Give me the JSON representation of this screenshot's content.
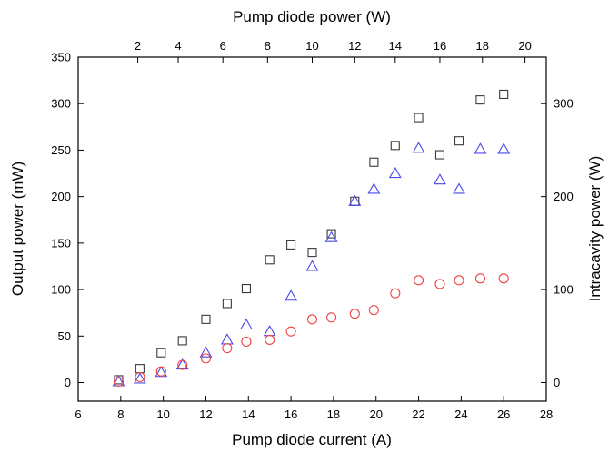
{
  "chart_data": {
    "type": "scatter",
    "xlabel": "Pump diode current (A)",
    "x2label": "Pump diode power (W)",
    "ylabel": "Output power (mW)",
    "y2label": "Intracavity power (W)",
    "xlim": [
      6,
      28
    ],
    "ylim": [
      -20,
      350
    ],
    "x_ticks": [
      6,
      8,
      10,
      12,
      14,
      16,
      18,
      20,
      22,
      24,
      26,
      28
    ],
    "y_ticks": [
      0,
      50,
      100,
      150,
      200,
      250,
      300,
      350
    ],
    "x2_ticks": [
      2,
      4,
      6,
      8,
      10,
      12,
      14,
      16,
      18,
      20
    ],
    "x2_tick_current": [
      8.8,
      10.7,
      12.8,
      14.9,
      17.0,
      19.0,
      20.9,
      23.0,
      25.0,
      27.0
    ],
    "y2_ticks": [
      0,
      100,
      200,
      300
    ],
    "y2_tick_output": [
      0,
      100,
      200,
      300
    ],
    "grid": false,
    "series": [
      {
        "marker": "square",
        "color": "#3a3a3a",
        "x": [
          7.9,
          8.9,
          9.9,
          10.9,
          12.0,
          13.0,
          13.9,
          15.0,
          16.0,
          17.0,
          17.9,
          19.0,
          19.9,
          20.9,
          22.0,
          23.0,
          23.9,
          24.9,
          26.0
        ],
        "y": [
          3,
          15,
          32,
          45,
          68,
          85,
          101,
          132,
          148,
          140,
          160,
          195,
          237,
          255,
          285,
          245,
          260,
          304,
          310
        ]
      },
      {
        "marker": "triangle",
        "color": "#4a4ae6",
        "x": [
          7.9,
          8.9,
          9.9,
          10.9,
          12.0,
          13.0,
          13.9,
          15.0,
          16.0,
          17.0,
          17.9,
          19.0,
          19.9,
          20.9,
          22.0,
          23.0,
          23.9,
          24.9,
          26.0
        ],
        "y": [
          1,
          4,
          11,
          19,
          32,
          46,
          62,
          55,
          93,
          125,
          156,
          195,
          208,
          225,
          252,
          218,
          208,
          251,
          251
        ]
      },
      {
        "marker": "circle",
        "color": "#ee4444",
        "x": [
          7.9,
          8.9,
          9.9,
          10.9,
          12.0,
          13.0,
          13.9,
          15.0,
          16.0,
          17.0,
          17.9,
          19.0,
          19.9,
          20.9,
          22.0,
          23.0,
          23.9,
          24.9,
          26.0
        ],
        "y": [
          1,
          6,
          12,
          19,
          26,
          37,
          44,
          46,
          55,
          68,
          70,
          74,
          78,
          96,
          110,
          106,
          110,
          112,
          112
        ]
      }
    ]
  }
}
